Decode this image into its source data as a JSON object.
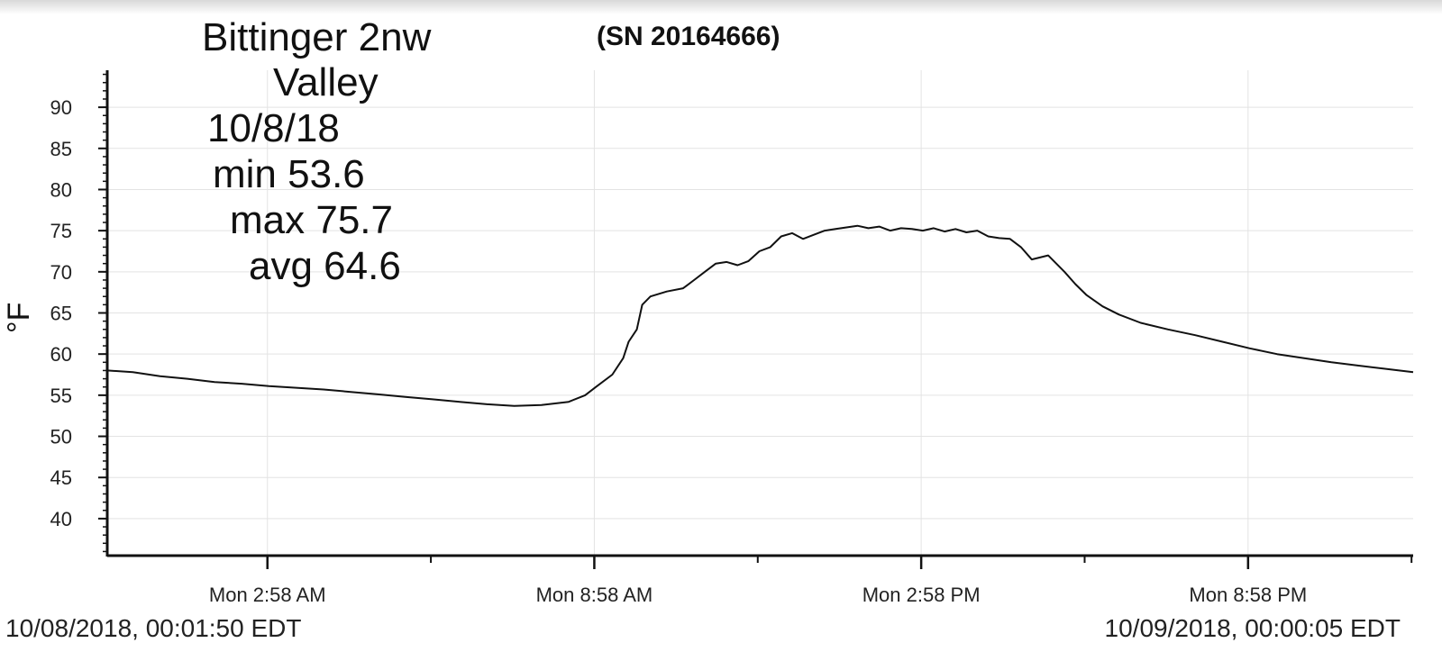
{
  "header": {
    "title_line1": "Bittinger 2nw",
    "title_line2": "Valley",
    "date": "10/8/18",
    "min": "min 53.6",
    "max": "max 75.7",
    "avg": "avg 64.6",
    "serial": "(SN 20164666)"
  },
  "footer": {
    "start": "10/08/2018, 00:01:50 EDT",
    "end": "10/09/2018, 00:00:05 EDT"
  },
  "colors": {
    "line": "#111111",
    "grid": "#e3e3e3",
    "axis": "#111111"
  },
  "chart_data": {
    "type": "line",
    "ylabel": "°F",
    "xlabel": "",
    "ylim": [
      35.5,
      94.5
    ],
    "yticks": [
      40,
      45,
      50,
      55,
      60,
      65,
      70,
      75,
      80,
      85,
      90
    ],
    "ytick_labels": [
      "40",
      "45",
      "50",
      "55",
      "60",
      "65",
      "70",
      "75",
      "80",
      "85",
      "90"
    ],
    "xlim_hours": [
      0.03,
      24.0
    ],
    "xticks_hours": [
      2.97,
      8.97,
      14.97,
      20.97
    ],
    "xtick_labels": [
      "Mon 2:58 AM",
      "Mon 8:58 AM",
      "Mon 2:58 PM",
      "Mon 8:58 PM"
    ],
    "grid": true,
    "series": [
      {
        "x_hours": [
          0.03,
          0.5,
          1.0,
          1.5,
          2.0,
          2.5,
          3.0,
          3.5,
          4.0,
          4.5,
          5.0,
          5.5,
          6.0,
          6.5,
          7.0,
          7.5,
          8.0,
          8.5,
          8.8,
          9.0,
          9.3,
          9.5,
          9.6,
          9.75,
          9.85,
          10.0,
          10.3,
          10.6,
          10.8,
          11.0,
          11.2,
          11.4,
          11.6,
          11.8,
          12.0,
          12.2,
          12.4,
          12.6,
          12.8,
          13.0,
          13.2,
          13.4,
          13.6,
          13.8,
          14.0,
          14.2,
          14.4,
          14.6,
          14.8,
          15.0,
          15.2,
          15.4,
          15.6,
          15.8,
          16.0,
          16.2,
          16.4,
          16.6,
          16.8,
          17.0,
          17.3,
          17.6,
          17.8,
          18.0,
          18.3,
          18.6,
          19.0,
          19.5,
          20.0,
          20.5,
          21.0,
          21.5,
          22.0,
          22.5,
          23.0,
          23.5,
          24.0
        ],
        "values": [
          58.0,
          57.8,
          57.3,
          57.0,
          56.6,
          56.4,
          56.1,
          55.9,
          55.7,
          55.4,
          55.1,
          54.8,
          54.5,
          54.2,
          53.9,
          53.7,
          53.8,
          54.2,
          55.0,
          56.0,
          57.5,
          59.5,
          61.5,
          63.0,
          66.0,
          67.0,
          67.6,
          68.0,
          69.0,
          70.0,
          71.0,
          71.2,
          70.8,
          71.3,
          72.5,
          73.0,
          74.3,
          74.7,
          74.0,
          74.5,
          75.0,
          75.2,
          75.4,
          75.6,
          75.3,
          75.5,
          75.0,
          75.3,
          75.2,
          75.0,
          75.3,
          74.9,
          75.2,
          74.8,
          75.0,
          74.3,
          74.1,
          74.0,
          73.0,
          71.5,
          72.0,
          70.0,
          68.5,
          67.2,
          65.8,
          64.8,
          63.8,
          63.0,
          62.3,
          61.5,
          60.7,
          60.0,
          59.5,
          59.0,
          58.6,
          58.2,
          57.8
        ]
      }
    ]
  }
}
